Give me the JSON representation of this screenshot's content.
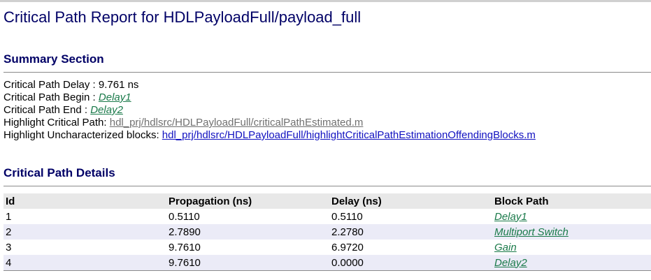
{
  "title": "Critical Path Report for HDLPayloadFull/payload_full",
  "summary": {
    "heading": "Summary Section",
    "delay_label": "Critical Path Delay : ",
    "delay_value": "9.761 ns",
    "begin_label": "Critical Path Begin : ",
    "begin_link": "Delay1",
    "end_label": "Critical Path End : ",
    "end_link": "Delay2",
    "highlight_label": "Highlight Critical Path: ",
    "highlight_link": "hdl_prj/hdlsrc/HDLPayloadFull/criticalPathEstimated.m",
    "uncharacterized_label": "Highlight Uncharacterized blocks: ",
    "uncharacterized_link": "hdl_prj/hdlsrc/HDLPayloadFull/highlightCriticalPathEstimationOffendingBlocks.m"
  },
  "details": {
    "heading": "Critical Path Details",
    "columns": [
      "Id",
      "Propagation (ns)",
      "Delay (ns)",
      "Block Path"
    ],
    "rows": [
      {
        "id": "1",
        "propagation": "0.5110",
        "delay": "0.5110",
        "block": "Delay1"
      },
      {
        "id": "2",
        "propagation": "2.7890",
        "delay": "2.2780",
        "block": "Multiport Switch"
      },
      {
        "id": "3",
        "propagation": "9.7610",
        "delay": "6.9720",
        "block": "Gain"
      },
      {
        "id": "4",
        "propagation": "9.7610",
        "delay": "0.0000",
        "block": "Delay2"
      }
    ]
  },
  "colors": {
    "heading": "#000066",
    "block_link": "#1a7a4a",
    "visited_link": "#707070",
    "link": "#1010c0",
    "header_row_bg": "#e8e8e8",
    "alt_row_bg": "#ebebf7"
  }
}
